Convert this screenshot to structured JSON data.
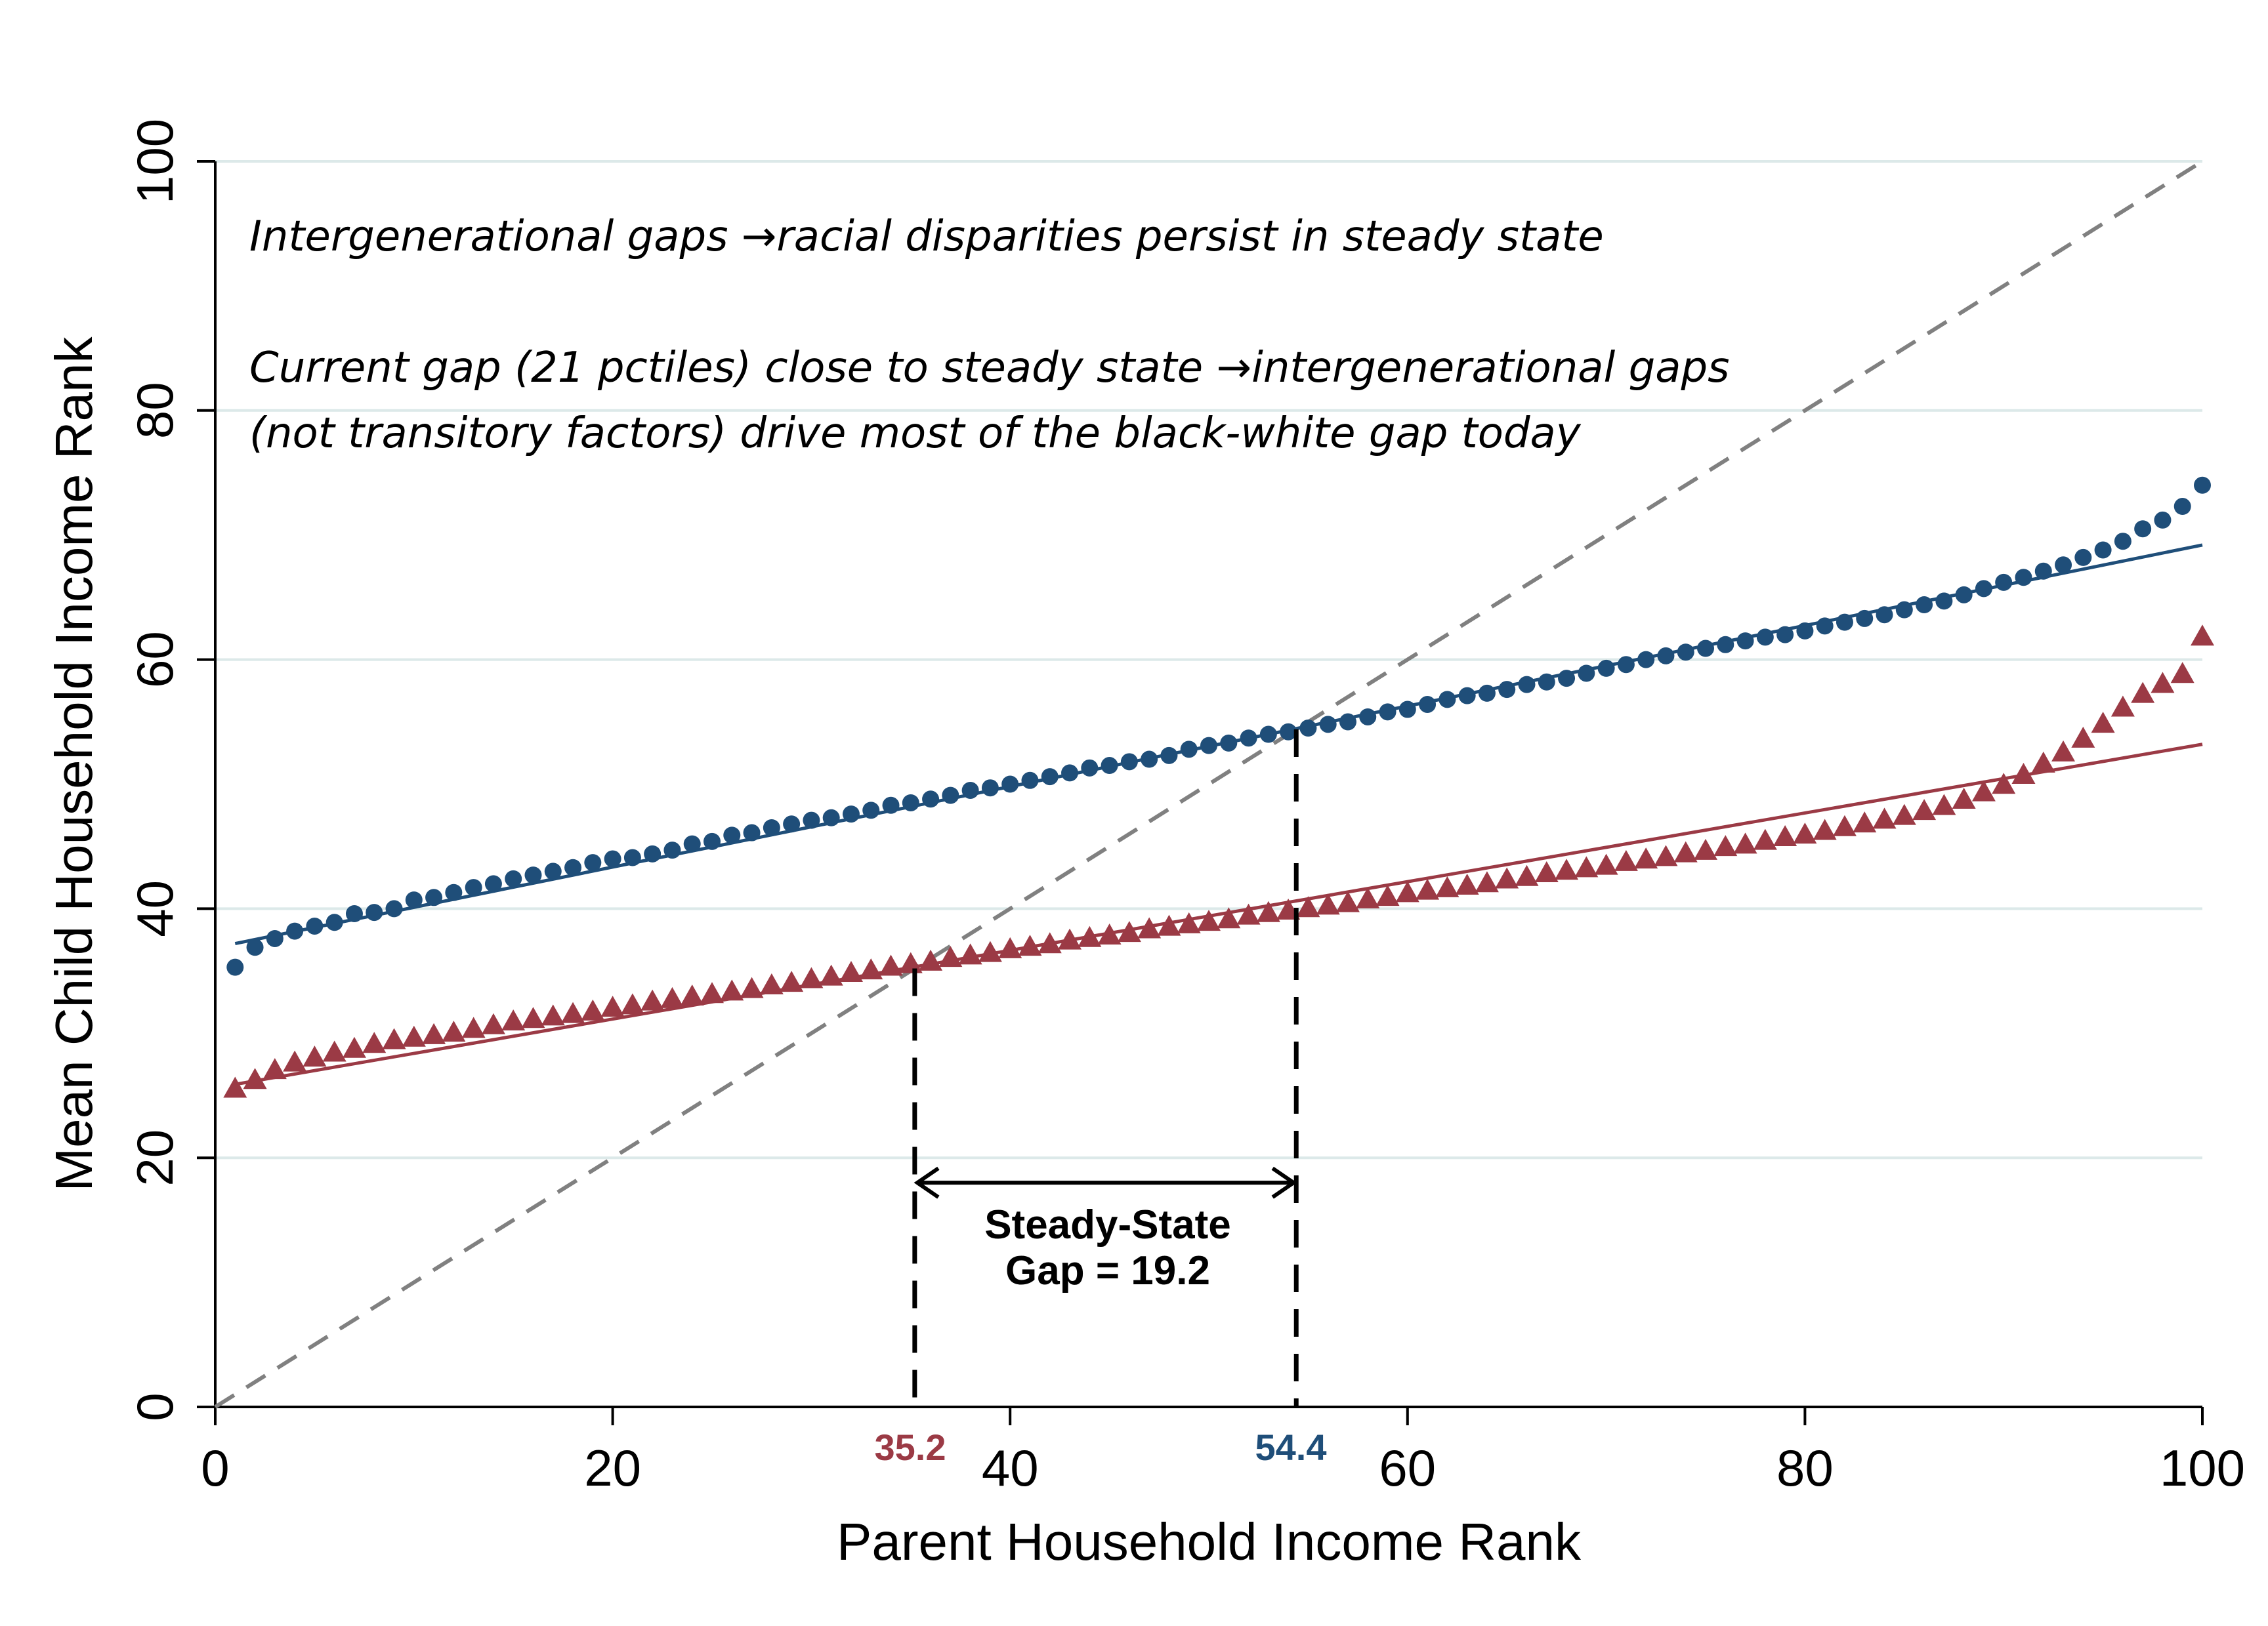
{
  "colors": {
    "white": "#1f4e79",
    "black": "#9b3a45",
    "diagonal": "#808080",
    "grid": "#dce9e9"
  },
  "notes": [
    "Intergenerational gaps →racial disparities persist in steady state",
    "Current gap (21 pctiles) close to steady state →intergenerational gaps",
    "(not transitory factors) drive most of the black-white gap today"
  ],
  "gap_label": [
    "Steady-State",
    "Gap = 19.2"
  ],
  "steady_state_labels": {
    "black": "35.2",
    "white": "54.4"
  },
  "chart_data": {
    "type": "scatter",
    "xlabel": "Parent Household Income Rank",
    "ylabel": "Mean Child Household Income Rank",
    "xlim": [
      0,
      100
    ],
    "ylim": [
      0,
      100
    ],
    "xticks": [
      "0",
      "20",
      "40",
      "60",
      "80",
      "100"
    ],
    "yticks": [
      "0",
      "20",
      "40",
      "60",
      "80",
      "100"
    ],
    "grid": "horizontal",
    "x": [
      1,
      2,
      3,
      4,
      5,
      6,
      7,
      8,
      9,
      10,
      11,
      12,
      13,
      14,
      15,
      16,
      17,
      18,
      19,
      20,
      21,
      22,
      23,
      24,
      25,
      26,
      27,
      28,
      29,
      30,
      31,
      32,
      33,
      34,
      35,
      36,
      37,
      38,
      39,
      40,
      41,
      42,
      43,
      44,
      45,
      46,
      47,
      48,
      49,
      50,
      51,
      52,
      53,
      54,
      55,
      56,
      57,
      58,
      59,
      60,
      61,
      62,
      63,
      64,
      65,
      66,
      67,
      68,
      69,
      70,
      71,
      72,
      73,
      74,
      75,
      76,
      77,
      78,
      79,
      80,
      81,
      82,
      83,
      84,
      85,
      86,
      87,
      88,
      89,
      90,
      91,
      92,
      93,
      94,
      95,
      96,
      97,
      98,
      99,
      100
    ],
    "series": [
      {
        "key": "white",
        "marker": "circle",
        "values": [
          35.3,
          36.9,
          37.6,
          38.2,
          38.6,
          38.9,
          39.6,
          39.7,
          40.0,
          40.7,
          40.9,
          41.3,
          41.7,
          42.0,
          42.4,
          42.7,
          43.0,
          43.3,
          43.7,
          44.0,
          44.1,
          44.4,
          44.7,
          45.2,
          45.4,
          45.9,
          46.1,
          46.5,
          46.8,
          47.1,
          47.3,
          47.6,
          47.9,
          48.3,
          48.5,
          48.8,
          49.1,
          49.5,
          49.7,
          50.0,
          50.3,
          50.6,
          50.9,
          51.3,
          51.5,
          51.8,
          52.0,
          52.3,
          52.8,
          53.1,
          53.3,
          53.7,
          54.0,
          54.2,
          54.5,
          54.8,
          55.0,
          55.4,
          55.8,
          56.0,
          56.4,
          56.8,
          57.1,
          57.3,
          57.6,
          58.0,
          58.2,
          58.5,
          58.9,
          59.3,
          59.6,
          60.0,
          60.3,
          60.6,
          60.9,
          61.2,
          61.5,
          61.8,
          62.0,
          62.3,
          62.7,
          63.0,
          63.3,
          63.6,
          64.0,
          64.4,
          64.7,
          65.2,
          65.7,
          66.2,
          66.6,
          67.1,
          67.6,
          68.2,
          68.8,
          69.5,
          70.5,
          71.2,
          72.3,
          74.0
        ]
      },
      {
        "key": "black",
        "marker": "triangle",
        "values": [
          25.5,
          26.2,
          27.0,
          27.6,
          28.0,
          28.4,
          28.7,
          29.1,
          29.4,
          29.6,
          29.8,
          30.0,
          30.3,
          30.6,
          30.9,
          31.1,
          31.3,
          31.5,
          31.7,
          32.0,
          32.2,
          32.5,
          32.7,
          32.9,
          33.1,
          33.3,
          33.5,
          33.8,
          34.0,
          34.3,
          34.5,
          34.8,
          35.0,
          35.3,
          35.5,
          35.7,
          36.0,
          36.2,
          36.4,
          36.7,
          36.9,
          37.1,
          37.4,
          37.6,
          37.8,
          38.0,
          38.3,
          38.5,
          38.7,
          38.9,
          39.1,
          39.4,
          39.6,
          39.8,
          40.0,
          40.2,
          40.4,
          40.7,
          40.9,
          41.2,
          41.4,
          41.6,
          41.8,
          42.0,
          42.3,
          42.5,
          42.8,
          43.0,
          43.2,
          43.4,
          43.7,
          43.9,
          44.1,
          44.4,
          44.6,
          44.9,
          45.1,
          45.4,
          45.7,
          45.9,
          46.2,
          46.5,
          46.8,
          47.1,
          47.4,
          47.8,
          48.2,
          48.7,
          49.3,
          49.9,
          50.7,
          51.6,
          52.5,
          53.6,
          54.8,
          56.1,
          57.2,
          58.0,
          58.8,
          61.8
        ]
      }
    ],
    "fits": [
      {
        "key": "white",
        "x": [
          1,
          100
        ],
        "y": [
          37.2,
          69.2
        ]
      },
      {
        "key": "black",
        "x": [
          1,
          100
        ],
        "y": [
          25.9,
          53.2
        ]
      }
    ],
    "diagonal": {
      "x": [
        0,
        100
      ],
      "y": [
        0,
        100
      ]
    },
    "steady_states": [
      {
        "key": "black",
        "x": 35.2,
        "y": 35.2
      },
      {
        "key": "white",
        "x": 54.4,
        "y": 54.4
      }
    ],
    "gap_arrow": {
      "x1": 35.2,
      "x2": 54.4,
      "y": 18.0
    },
    "gap_value": 19.2
  }
}
